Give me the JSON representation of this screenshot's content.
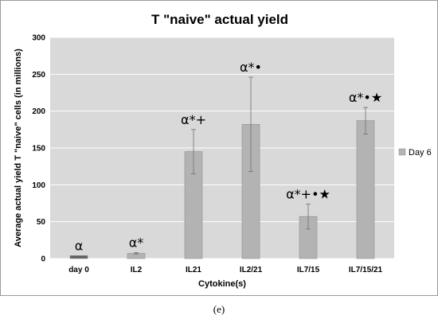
{
  "chart_data": {
    "type": "bar",
    "title": "T \"naive\" actual yield",
    "xlabel": "Cytokine(s)",
    "ylabel": "Average actual yield T \"naive\" cells (in millions)",
    "categories": [
      "day 0",
      "IL2",
      "IL21",
      "IL2/21",
      "IL7/15",
      "IL7/15/21"
    ],
    "ylim": [
      0,
      300
    ],
    "yticks": [
      0,
      50,
      100,
      150,
      200,
      250,
      300
    ],
    "grid": "horizontal",
    "legend_position": "right",
    "series": [
      {
        "name": "Day 6",
        "color": "#b3b3b3",
        "values": [
          4,
          7,
          145,
          182,
          57,
          187
        ],
        "error": [
          0,
          1,
          30,
          64,
          17,
          18
        ],
        "annotations": [
          "α",
          "α*",
          "α*+",
          "α*•",
          "α*+•★",
          "α*•★"
        ]
      }
    ],
    "day0_bar_color": "#606060"
  },
  "caption": "(e)"
}
